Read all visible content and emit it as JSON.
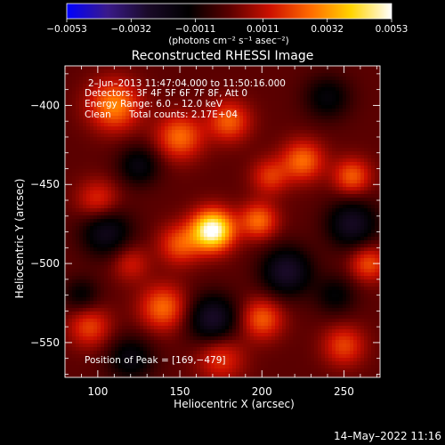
{
  "chart_data": {
    "type": "heatmap",
    "title": "Reconstructed RHESSI Image",
    "xlabel": "Heliocentric X (arcsec)",
    "ylabel": "Heliocentric Y (arcsec)",
    "xlim": [
      80,
      272
    ],
    "ylim": [
      -572,
      -375
    ],
    "x_ticks": [
      100,
      150,
      200,
      250
    ],
    "y_ticks": [
      -400,
      -450,
      -500,
      -550
    ],
    "x_tick_labels": [
      "100",
      "150",
      "200",
      "250"
    ],
    "y_tick_labels": [
      "−400",
      "−450",
      "−500",
      "−550"
    ],
    "colorbar": {
      "range": [
        -0.0053,
        0.0053
      ],
      "ticks": [
        -0.0053,
        -0.0032,
        -0.0011,
        0.0011,
        0.0032,
        0.0053
      ],
      "tick_labels": [
        "−0.0053",
        "−0.0032",
        "−0.0011",
        "0.0011",
        "0.0032",
        "0.0053"
      ],
      "unit_label": "(photons cm⁻² s⁻¹ asec⁻²)",
      "colormap": [
        "#0000ff",
        "#3a1a8a",
        "#1a0a28",
        "#000000",
        "#5a0000",
        "#cc1000",
        "#ff6a00",
        "#ffd400",
        "#ffffff"
      ]
    },
    "peak": [
      169,
      -479
    ],
    "blobs": [
      {
        "x": 170,
        "y": -479,
        "value": 0.0055,
        "sigma": 9
      },
      {
        "x": 198,
        "y": -473,
        "value": 0.0026,
        "sigma": 8
      },
      {
        "x": 150,
        "y": -488,
        "value": 0.0022,
        "sigma": 9
      },
      {
        "x": 110,
        "y": -400,
        "value": 0.003,
        "sigma": 11
      },
      {
        "x": 150,
        "y": -420,
        "value": 0.0026,
        "sigma": 10
      },
      {
        "x": 180,
        "y": -410,
        "value": 0.0024,
        "sigma": 9
      },
      {
        "x": 225,
        "y": -435,
        "value": 0.0026,
        "sigma": 9
      },
      {
        "x": 255,
        "y": -445,
        "value": 0.0024,
        "sigma": 8
      },
      {
        "x": 205,
        "y": -445,
        "value": 0.0018,
        "sigma": 8
      },
      {
        "x": 100,
        "y": -460,
        "value": 0.0018,
        "sigma": 9
      },
      {
        "x": 265,
        "y": -500,
        "value": 0.0022,
        "sigma": 8
      },
      {
        "x": 140,
        "y": -528,
        "value": 0.0026,
        "sigma": 10
      },
      {
        "x": 200,
        "y": -535,
        "value": 0.0024,
        "sigma": 9
      },
      {
        "x": 250,
        "y": -552,
        "value": 0.002,
        "sigma": 9
      },
      {
        "x": 95,
        "y": -540,
        "value": 0.002,
        "sigma": 9
      },
      {
        "x": 175,
        "y": -560,
        "value": 0.0018,
        "sigma": 10
      },
      {
        "x": 120,
        "y": -500,
        "value": 0.0014,
        "sigma": 8
      },
      {
        "x": 105,
        "y": -480,
        "value": -0.0022,
        "sigma": 11
      },
      {
        "x": 125,
        "y": -438,
        "value": -0.0018,
        "sigma": 9
      },
      {
        "x": 255,
        "y": -475,
        "value": -0.0024,
        "sigma": 11
      },
      {
        "x": 215,
        "y": -505,
        "value": -0.0026,
        "sigma": 11
      },
      {
        "x": 170,
        "y": -535,
        "value": -0.0026,
        "sigma": 11
      },
      {
        "x": 120,
        "y": -560,
        "value": -0.0018,
        "sigma": 10
      },
      {
        "x": 240,
        "y": -395,
        "value": -0.0016,
        "sigma": 10
      },
      {
        "x": 245,
        "y": -520,
        "value": -0.0014,
        "sigma": 9
      },
      {
        "x": 90,
        "y": -520,
        "value": -0.0014,
        "sigma": 8
      }
    ]
  },
  "overlay": {
    "time_range": "2–Jun–2013 11:47:04.000 to 11:50:16.000",
    "detectors": "Detectors: 3F 4F 5F 6F 7F 8F, Att 0",
    "energy_range": "Energy Range: 6.0 – 12.0 keV",
    "clean": "Clean",
    "total_counts": "Total counts: 2.17E+04",
    "peak_position": "Position of Peak = [169,−479]"
  },
  "footer": {
    "timestamp": "14–May–2022 11:16"
  }
}
